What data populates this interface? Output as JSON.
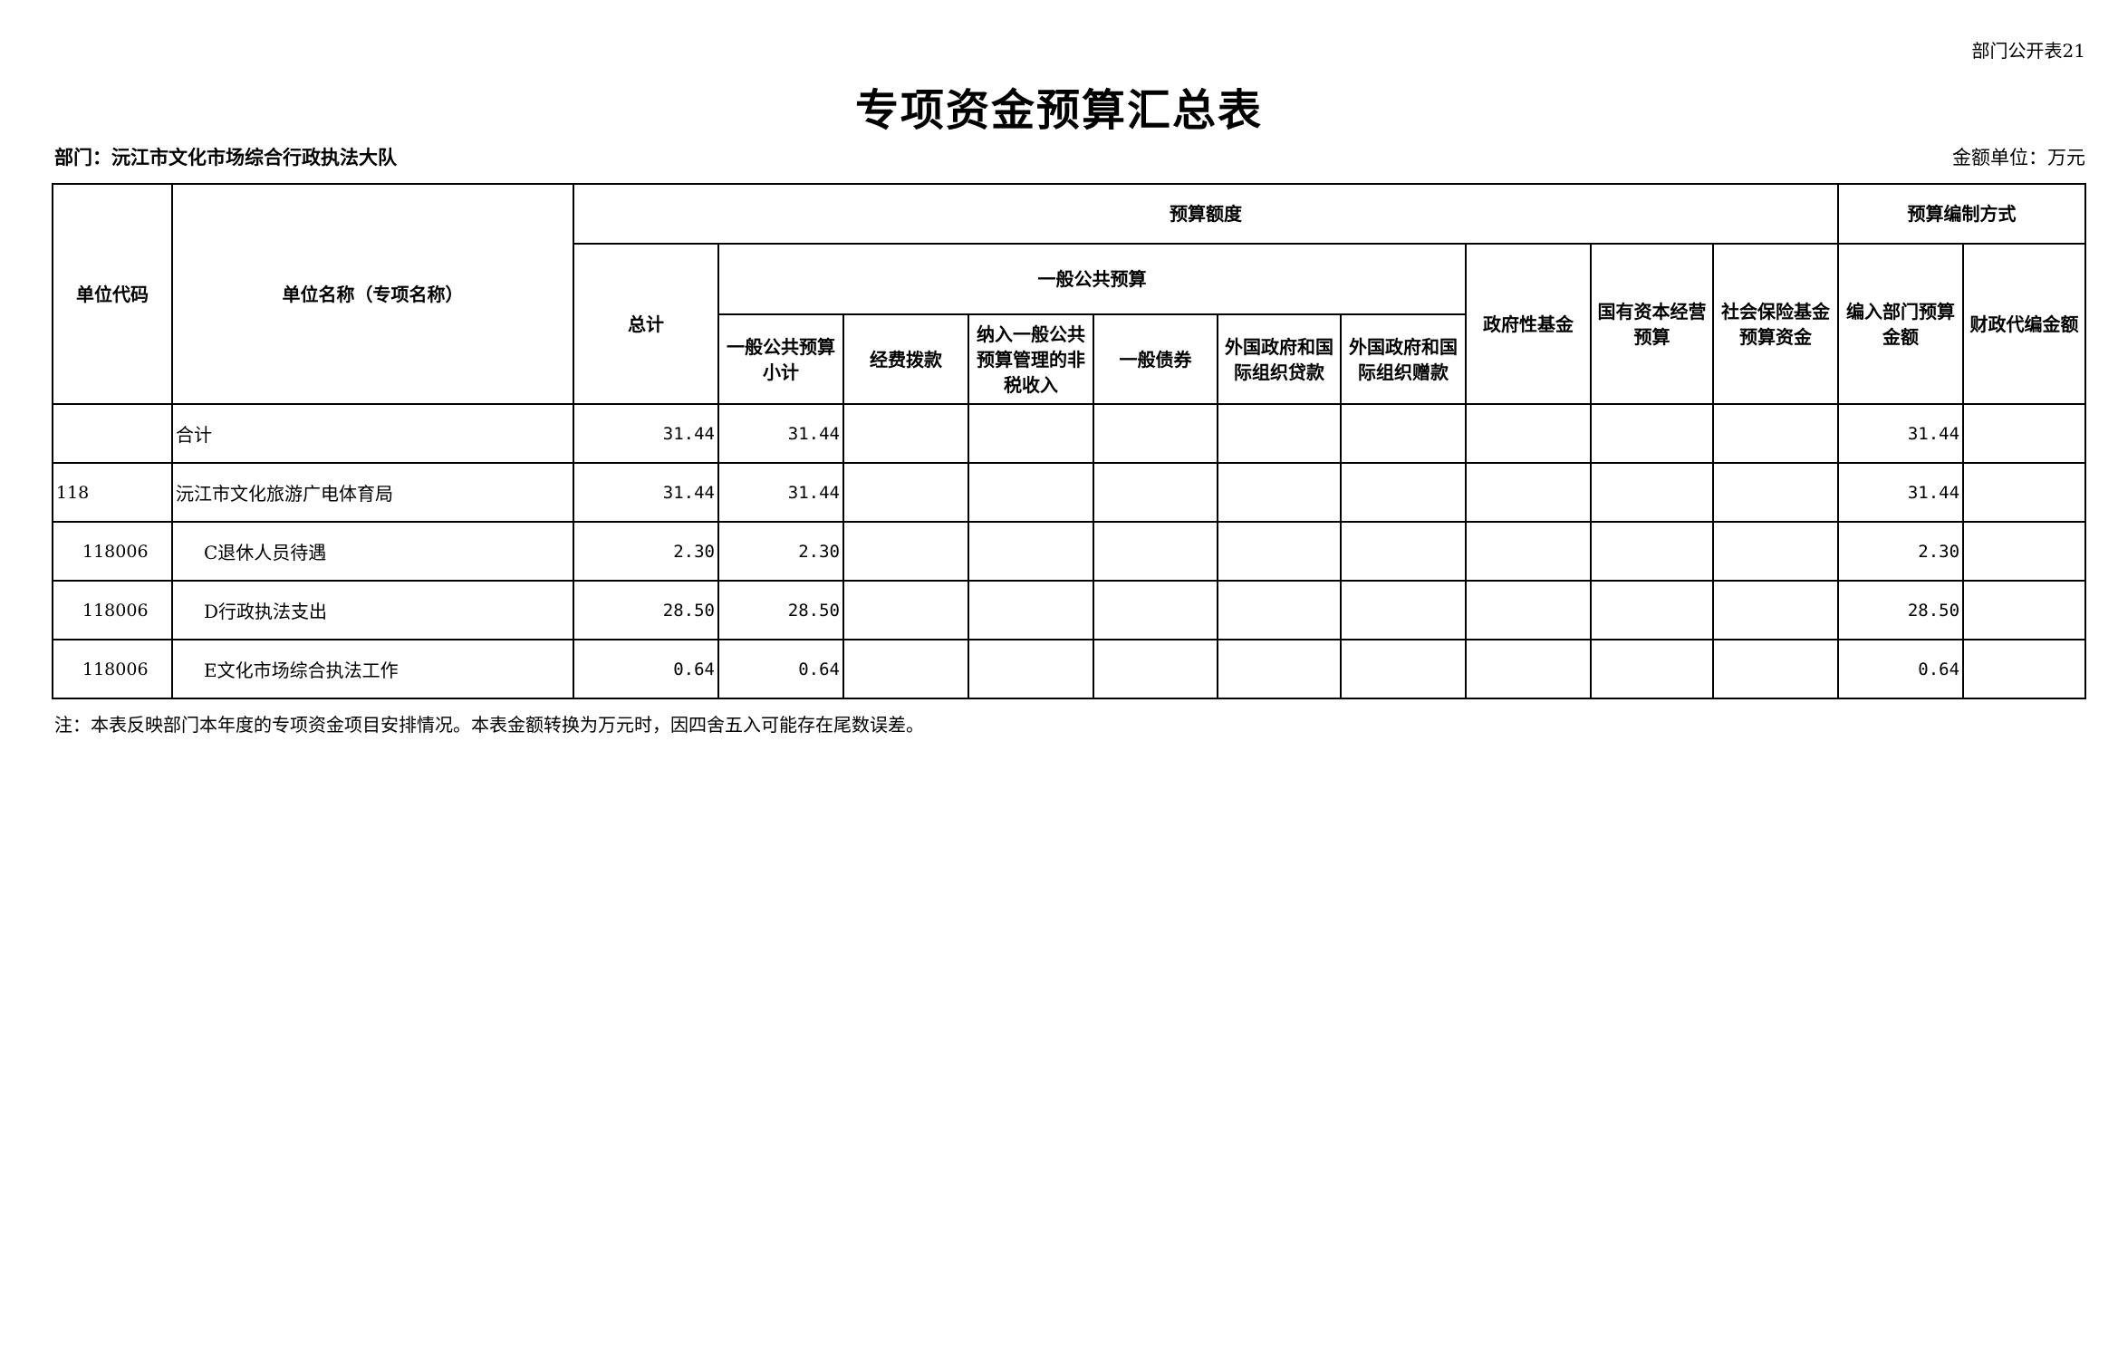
{
  "page_label": "部门公开表21",
  "title": "专项资金预算汇总表",
  "department": "部门：沅江市文化市场综合行政执法大队",
  "unit": "金额单位：万元",
  "headers": {
    "unit_code": "单位代码",
    "unit_name": "单位名称（专项名称）",
    "budget_amount": "预算额度",
    "budget_method": "预算编制方式",
    "total": "总计",
    "general_public_budget": "一般公共预算",
    "gpb_subtotal": "一般公共预算小计",
    "funding_allocation": "经费拨款",
    "non_tax_income": "纳入一般公共预算管理的非税收入",
    "general_bonds": "一般债券",
    "foreign_loans": "外国政府和国际组织贷款",
    "foreign_grants": "外国政府和国际组织赠款",
    "gov_fund": "政府性基金",
    "state_capital": "国有资本经营预算",
    "social_insurance": "社会保险基金预算资金",
    "dept_budget": "编入部门预算金额",
    "fiscal_agency": "财政代编金额"
  },
  "rows": [
    {
      "code": "",
      "name": "合计",
      "total": "31.44",
      "subtotal": "31.44",
      "dept_budget": "31.44"
    },
    {
      "code": "118",
      "name": "沅江市文化旅游广电体育局",
      "total": "31.44",
      "subtotal": "31.44",
      "dept_budget": "31.44"
    },
    {
      "code": "118006",
      "name": "C退休人员待遇",
      "total": "2.30",
      "subtotal": "2.30",
      "dept_budget": "2.30"
    },
    {
      "code": "118006",
      "name": "D行政执法支出",
      "total": "28.50",
      "subtotal": "28.50",
      "dept_budget": "28.50"
    },
    {
      "code": "118006",
      "name": "E文化市场综合执法工作",
      "total": "0.64",
      "subtotal": "0.64",
      "dept_budget": "0.64"
    }
  ],
  "note": "注：本表反映部门本年度的专项资金项目安排情况。本表金额转换为万元时，因四舍五入可能存在尾数误差。"
}
